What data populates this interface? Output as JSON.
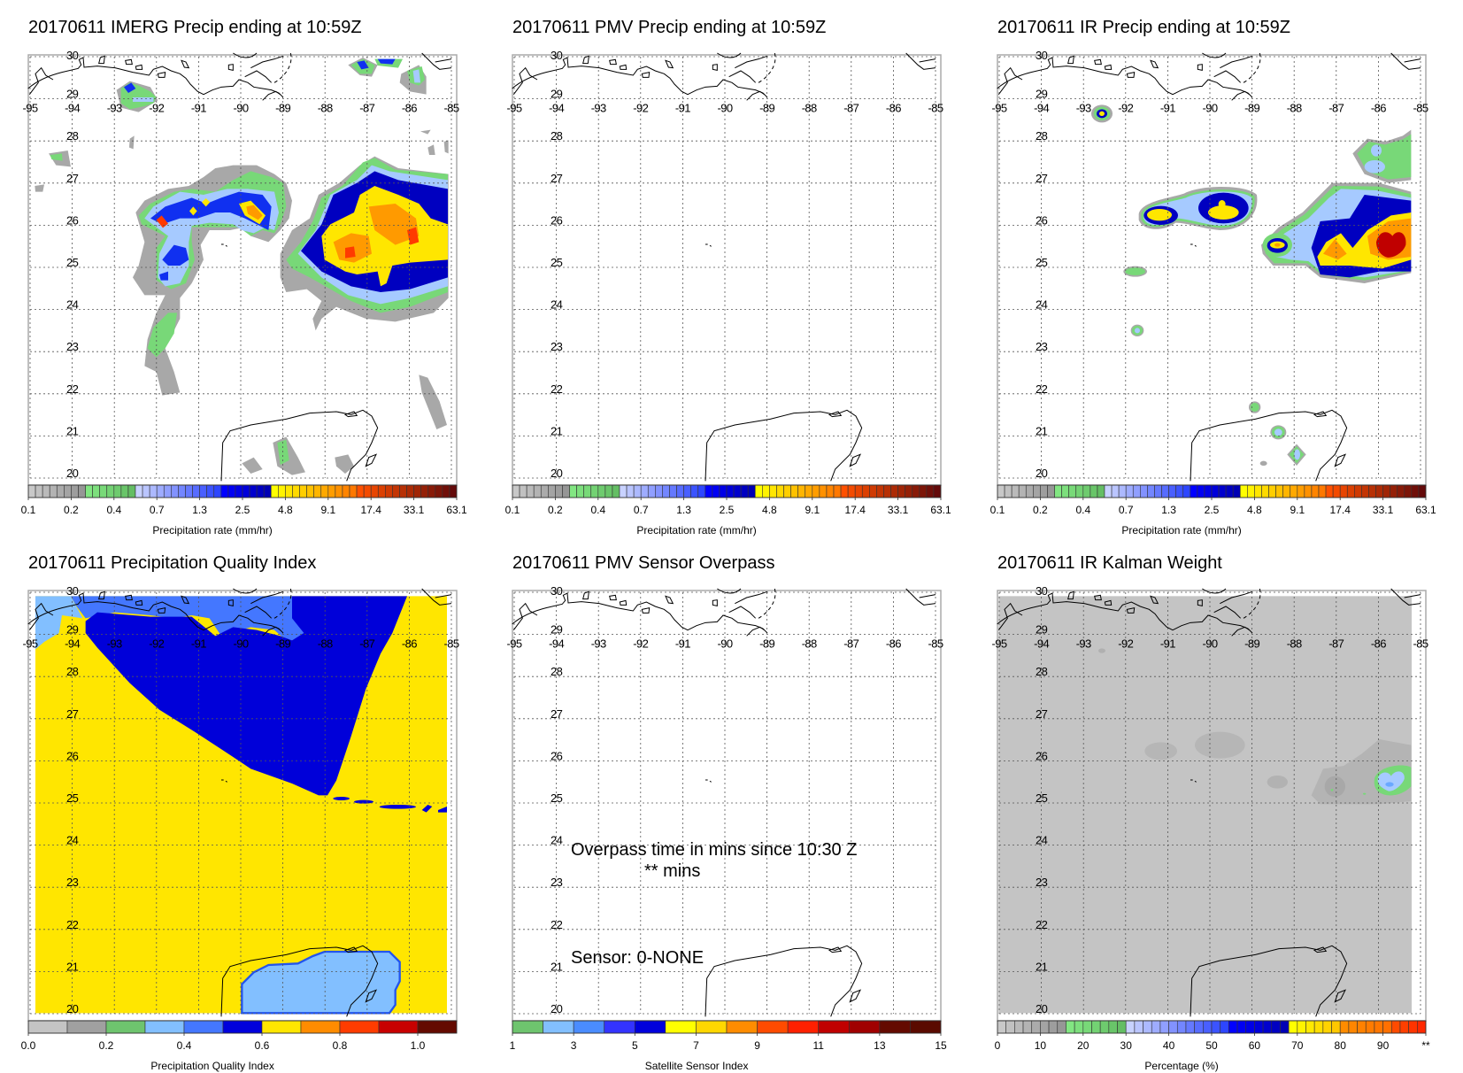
{
  "lat_labels": [
    "30",
    "29",
    "28",
    "27",
    "26",
    "25",
    "24",
    "23",
    "22",
    "21",
    "20"
  ],
  "lon_labels": [
    "-95",
    "-94",
    "-93",
    "-92",
    "-91",
    "-90",
    "-89",
    "-88",
    "-87",
    "-86",
    "-85"
  ],
  "panels": [
    {
      "title": "20170611 IMERG Precip ending at 10:59Z",
      "colorbar": "precip",
      "axis_title": "Precipitation rate (mm/hr)"
    },
    {
      "title": "20170611 PMV Precip ending at 10:59Z",
      "colorbar": "precip",
      "axis_title": "Precipitation rate (mm/hr)"
    },
    {
      "title": "20170611 IR Precip ending at 10:59Z",
      "colorbar": "precip",
      "axis_title": "Precipitation rate (mm/hr)"
    },
    {
      "title": "20170611 Precipitation Quality Index",
      "colorbar": "pqi",
      "axis_title": "Precipitation Quality Index"
    },
    {
      "title": "20170611 PMV Sensor Overpass",
      "colorbar": "sensor",
      "axis_title": "Satellite Sensor Index"
    },
    {
      "title": "20170611 IR Kalman Weight",
      "colorbar": "percent",
      "axis_title": "Percentage (%)"
    }
  ],
  "overpass": {
    "line1": "Overpass time in mins since 10:30 Z",
    "line2": "** mins",
    "sensor": "Sensor:   0-NONE"
  },
  "colorbars": {
    "precip": {
      "labels": [
        "0.1",
        "0.2",
        "0.4",
        "0.7",
        "1.3",
        "2.5",
        "4.8",
        "9.1",
        "17.4",
        "33.1",
        "63.1"
      ],
      "groups": [
        {
          "n": 8,
          "from": "#c8c8c8",
          "to": "#969696"
        },
        {
          "n": 7,
          "from": "#82e682",
          "to": "#64be64"
        },
        {
          "n": 12,
          "from": "#c8d2ff",
          "to": "#2d46ff"
        },
        {
          "n": 7,
          "from": "#0000ff",
          "to": "#0000b4"
        },
        {
          "n": 12,
          "from": "#ffff00",
          "to": "#ff7800"
        },
        {
          "n": 14,
          "from": "#ff5000",
          "to": "#640a0a"
        }
      ]
    },
    "percent": {
      "labels": [
        "0",
        "10",
        "20",
        "30",
        "40",
        "50",
        "60",
        "70",
        "80",
        "90",
        "**"
      ],
      "groups": [
        {
          "n": 8,
          "from": "#c8c8c8",
          "to": "#969696"
        },
        {
          "n": 7,
          "from": "#82e682",
          "to": "#64be64"
        },
        {
          "n": 12,
          "from": "#c8d2ff",
          "to": "#2d46ff"
        },
        {
          "n": 7,
          "from": "#0000ff",
          "to": "#0000b4"
        },
        {
          "n": 6,
          "from": "#ffff00",
          "to": "#ffc800"
        },
        {
          "n": 6,
          "from": "#ff8c00",
          "to": "#ff7000"
        },
        {
          "n": 4,
          "from": "#ff4b00",
          "to": "#ff2800"
        }
      ]
    },
    "pqi": {
      "labels": [
        "0.0",
        "0.2",
        "0.4",
        "0.6",
        "0.8",
        "1.0"
      ],
      "range": [
        0,
        1.1
      ],
      "label_values": [
        0,
        0.2,
        0.4,
        0.6,
        0.8,
        1.0
      ],
      "colors": [
        "#c4c4c4",
        "#a0a0a0",
        "#6ec46e",
        "#82bfff",
        "#4477ff",
        "#0000dc",
        "#ffe600",
        "#ff8c00",
        "#ff3c00",
        "#c80000",
        "#640a00"
      ]
    },
    "sensor": {
      "labels": [
        "1",
        "3",
        "5",
        "7",
        "9",
        "11",
        "13",
        "15"
      ],
      "range": [
        1,
        15
      ],
      "label_values": [
        1,
        3,
        5,
        7,
        9,
        11,
        13,
        15
      ],
      "colors": [
        "#6ec46e",
        "#82bfff",
        "#4a8cff",
        "#3333ff",
        "#0000dc",
        "#ffff00",
        "#ffd700",
        "#ff8c00",
        "#ff4b00",
        "#ff2000",
        "#c00000",
        "#a00000",
        "#640a00",
        "#5a0a00"
      ]
    }
  }
}
